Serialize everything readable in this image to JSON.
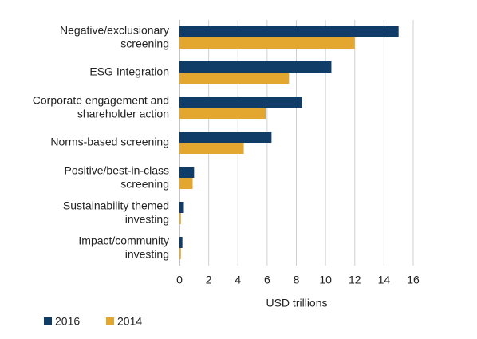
{
  "chart_data": {
    "type": "bar",
    "orientation": "horizontal",
    "categories": [
      "Negative/exclusionary\nscreening",
      "ESG Integration",
      "Corporate engagement and\nshareholder action",
      "Norms-based screening",
      "Positive/best-in-class\nscreening",
      "Sustainability themed\ninvesting",
      "Impact/community\ninvesting"
    ],
    "series": [
      {
        "name": "2016",
        "color": "#0f3d68",
        "values": [
          15.0,
          10.4,
          8.4,
          6.3,
          1.0,
          0.3,
          0.2
        ]
      },
      {
        "name": "2014",
        "color": "#e3a72f",
        "values": [
          12.0,
          7.5,
          5.9,
          4.4,
          0.9,
          0.1,
          0.1
        ]
      }
    ],
    "x_label": "USD trillions",
    "xlim": [
      0,
      16
    ],
    "xticks": [
      0,
      2,
      4,
      6,
      8,
      10,
      12,
      14,
      16
    ],
    "grid": true,
    "legend": "bottom-left"
  }
}
